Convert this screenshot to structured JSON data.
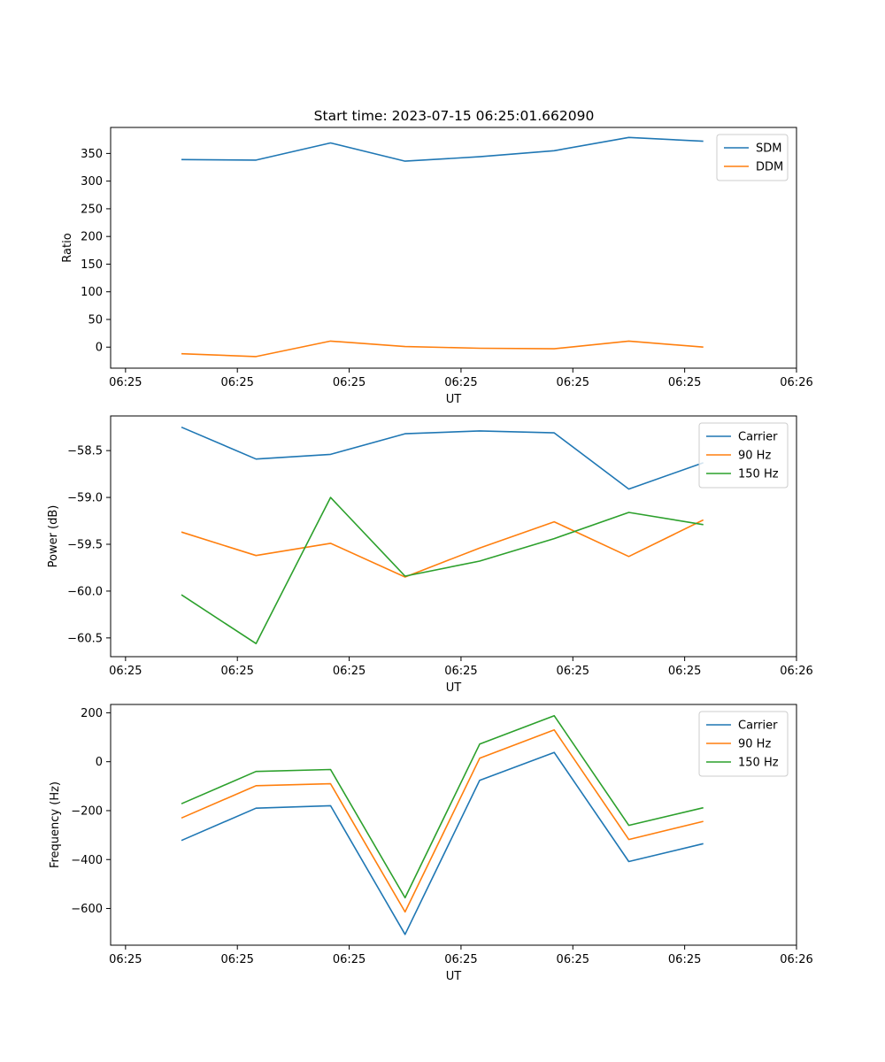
{
  "figure": {
    "title": "Start time: 2023-07-15 06:25:01.662090"
  },
  "chart_data": [
    {
      "type": "line",
      "title": "Start time: 2023-07-15 06:25:01.662090",
      "xlabel": "UT",
      "ylabel": "Ratio",
      "xlim": [
        -0.2,
        9.0
      ],
      "ylim": [
        -38,
        397
      ],
      "x_ticks": [
        0,
        1.5,
        3.0,
        4.5,
        6.0,
        7.5,
        9.0
      ],
      "x_tick_labels": [
        "06:25",
        "06:25",
        "06:25",
        "06:25",
        "06:25",
        "06:25",
        "06:26"
      ],
      "y_ticks": [
        0,
        50,
        100,
        150,
        200,
        250,
        300,
        350
      ],
      "y_tick_labels": [
        "0",
        "50",
        "100",
        "150",
        "200",
        "250",
        "300",
        "350"
      ],
      "x": [
        0.75,
        1.75,
        2.75,
        3.75,
        4.75,
        5.75,
        6.75,
        7.75
      ],
      "series": [
        {
          "name": "SDM",
          "color": "#1f77b4",
          "values": [
            339,
            338,
            369,
            336,
            344,
            355,
            379,
            372
          ]
        },
        {
          "name": "DDM",
          "color": "#ff7f0e",
          "values": [
            -12,
            -17,
            11,
            1,
            -2,
            -3,
            11,
            0
          ]
        }
      ],
      "legend": "top-right"
    },
    {
      "type": "line",
      "title": "",
      "xlabel": "UT",
      "ylabel": "Power (dB)",
      "xlim": [
        -0.2,
        9.0
      ],
      "ylim": [
        -60.7,
        -58.13
      ],
      "x_ticks": [
        0,
        1.5,
        3.0,
        4.5,
        6.0,
        7.5,
        9.0
      ],
      "x_tick_labels": [
        "06:25",
        "06:25",
        "06:25",
        "06:25",
        "06:25",
        "06:25",
        "06:26"
      ],
      "y_ticks": [
        -60.5,
        -60.0,
        -59.5,
        -59.0,
        -58.5
      ],
      "y_tick_labels": [
        "−60.5",
        "−60.0",
        "−59.5",
        "−59.0",
        "−58.5"
      ],
      "x": [
        0.75,
        1.75,
        2.75,
        3.75,
        4.75,
        5.75,
        6.75,
        7.75
      ],
      "series": [
        {
          "name": "Carrier",
          "color": "#1f77b4",
          "values": [
            -58.25,
            -58.59,
            -58.54,
            -58.32,
            -58.29,
            -58.31,
            -58.91,
            -58.63
          ]
        },
        {
          "name": "90 Hz",
          "color": "#ff7f0e",
          "values": [
            -59.37,
            -59.62,
            -59.49,
            -59.85,
            -59.54,
            -59.26,
            -59.63,
            -59.24
          ]
        },
        {
          "name": "150 Hz",
          "color": "#2ca02c",
          "values": [
            -60.04,
            -60.56,
            -59.0,
            -59.84,
            -59.68,
            -59.44,
            -59.16,
            -59.29
          ]
        }
      ],
      "legend": "top-right"
    },
    {
      "type": "line",
      "title": "",
      "xlabel": "UT",
      "ylabel": "Frequency (Hz)",
      "xlim": [
        -0.2,
        9.0
      ],
      "ylim": [
        -750,
        234
      ],
      "x_ticks": [
        0,
        1.5,
        3.0,
        4.5,
        6.0,
        7.5,
        9.0
      ],
      "x_tick_labels": [
        "06:25",
        "06:25",
        "06:25",
        "06:25",
        "06:25",
        "06:25",
        "06:26"
      ],
      "y_ticks": [
        -600,
        -400,
        -200,
        0,
        200
      ],
      "y_tick_labels": [
        "−600",
        "−400",
        "−200",
        "0",
        "200"
      ],
      "x": [
        0.75,
        1.75,
        2.75,
        3.75,
        4.75,
        5.75,
        6.75,
        7.75
      ],
      "series": [
        {
          "name": "Carrier",
          "color": "#1f77b4",
          "values": [
            -322,
            -190,
            -180,
            -706,
            -76,
            38,
            -408,
            -335
          ]
        },
        {
          "name": "90 Hz",
          "color": "#ff7f0e",
          "values": [
            -230,
            -98,
            -90,
            -614,
            14,
            130,
            -318,
            -244
          ]
        },
        {
          "name": "150 Hz",
          "color": "#2ca02c",
          "values": [
            -172,
            -40,
            -32,
            -556,
            72,
            188,
            -260,
            -188
          ]
        }
      ],
      "legend": "top-right"
    }
  ]
}
